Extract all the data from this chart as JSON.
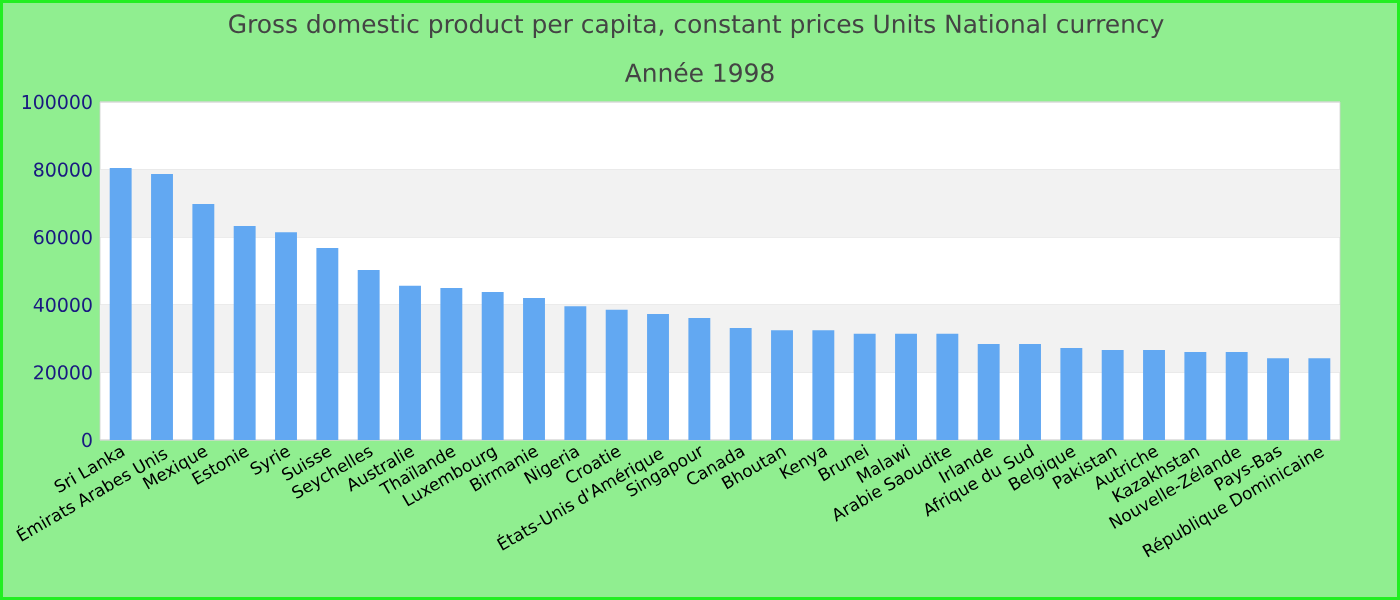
{
  "chart_data": {
    "type": "bar",
    "title": "Gross domestic product per capita, constant prices Units National currency",
    "subtitle": "Année 1998",
    "categories": [
      "Sri Lanka",
      "Émirats Arabes Unis",
      "Mexique",
      "Estonie",
      "Syrie",
      "Suisse",
      "Seychelles",
      "Australie",
      "Thaïlande",
      "Luxembourg",
      "Birmanie",
      "Nigeria",
      "Croatie",
      "États-Unis d'Amérique",
      "Singapour",
      "Canada",
      "Bhoutan",
      "Kenya",
      "Brunei",
      "Malawi",
      "Arabie Saoudite",
      "Irlande",
      "Afrique du Sud",
      "Belgique",
      "Pakistan",
      "Autriche",
      "Kazakhstan",
      "Nouvelle-Zélande",
      "Pays-Bas",
      "République Dominicaine"
    ],
    "values": [
      80500,
      78700,
      69800,
      63300,
      61500,
      56800,
      50300,
      45600,
      45000,
      43800,
      42000,
      39600,
      38500,
      37300,
      36100,
      33100,
      32500,
      32500,
      31400,
      31400,
      31400,
      28400,
      28400,
      27200,
      26600,
      26600,
      26000,
      26000,
      24200,
      24200
    ],
    "color": "#62a8f2",
    "ylim": [
      0,
      100000
    ],
    "yticks": [
      0,
      20000,
      40000,
      60000,
      80000,
      100000
    ],
    "grid": "y"
  }
}
